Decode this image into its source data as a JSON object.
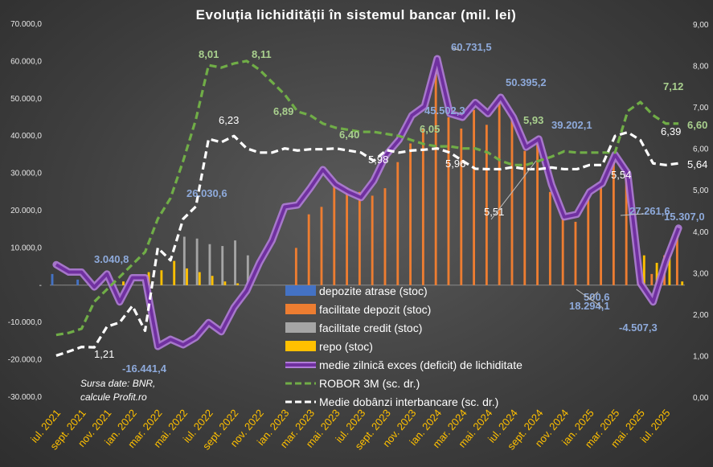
{
  "chart_data": {
    "type": "bar+line",
    "title": "Evoluția lichidității în sistemul bancar (mil. lei)",
    "source_line1": "Sursa date: BNR,",
    "source_line2": "calcule Profit.ro",
    "ylim_left": [
      -30000,
      70000
    ],
    "ylim_right": [
      0,
      9
    ],
    "left_ticks": [
      "70.000,0",
      "60.000,0",
      "50.000,0",
      "40.000,0",
      "30.000,0",
      "20.000,0",
      "10.000,0",
      "-",
      "-10.000,0",
      "-20.000,0",
      "-30.000,0"
    ],
    "right_ticks": [
      "9,00",
      "8,00",
      "7,00",
      "6,00",
      "5,00",
      "4,00",
      "3,00",
      "2,00",
      "1,00",
      "0,00"
    ],
    "x_labels": [
      "iul. 2021",
      "sept. 2021",
      "nov. 2021",
      "ian. 2022",
      "mar. 2022",
      "mai. 2022",
      "iul. 2022",
      "sept. 2022",
      "nov. 2022",
      "ian. 2023",
      "mar. 2023",
      "mai. 2023",
      "iul. 2023",
      "sept. 2023",
      "nov. 2023",
      "ian. 2024",
      "mar. 2024",
      "mai. 2024",
      "iul. 2024",
      "sept. 2024",
      "nov. 2024",
      "ian. 2025",
      "mar. 2025",
      "mai. 2025",
      "iul. 2025"
    ],
    "months": [
      "iul. 2021",
      "aug. 2021",
      "sept. 2021",
      "oct. 2021",
      "nov. 2021",
      "dec. 2021",
      "ian. 2022",
      "feb. 2022",
      "mar. 2022",
      "apr. 2022",
      "mai. 2022",
      "iun. 2022",
      "iul. 2022",
      "aug. 2022",
      "sept. 2022",
      "oct. 2022",
      "nov. 2022",
      "dec. 2022",
      "ian. 2023",
      "feb. 2023",
      "mar. 2023",
      "apr. 2023",
      "mai. 2023",
      "iun. 2023",
      "iul. 2023",
      "aug. 2023",
      "sept. 2023",
      "oct. 2023",
      "nov. 2023",
      "dec. 2023",
      "ian. 2024",
      "feb. 2024",
      "mar. 2024",
      "apr. 2024",
      "mai. 2024",
      "iun. 2024",
      "iul. 2024",
      "aug. 2024",
      "sept. 2024",
      "oct. 2024",
      "nov. 2024",
      "dec. 2024",
      "ian. 2025",
      "feb. 2025",
      "mar. 2025",
      "apr. 2025",
      "mai. 2025",
      "iun. 2025",
      "iul. 2025",
      "aug. 2025"
    ],
    "series": [
      {
        "name": "depozite atrase (stoc)",
        "kind": "bar",
        "axis": "left",
        "color": "#4472c4",
        "values": [
          3000,
          0,
          1500,
          0,
          0,
          0,
          500,
          0,
          0,
          0,
          0,
          0,
          0,
          0,
          0,
          0,
          0,
          0,
          0,
          0,
          0,
          0,
          0,
          0,
          0,
          0,
          0,
          0,
          0,
          0,
          0,
          0,
          0,
          0,
          0,
          0,
          0,
          0,
          0,
          0,
          0,
          0,
          0,
          0,
          0,
          0,
          0,
          0,
          0,
          0
        ]
      },
      {
        "name": "facilitate depozit (stoc)",
        "kind": "bar",
        "axis": "left",
        "color": "#ed7d31",
        "values": [
          0,
          0,
          0,
          0,
          0,
          0,
          0,
          0,
          0,
          0,
          0,
          0,
          0,
          0,
          0,
          0,
          0,
          0,
          0,
          10000,
          19000,
          21000,
          28000,
          26000,
          25000,
          24000,
          26000,
          33000,
          38000,
          42000,
          58000,
          45000,
          42000,
          47000,
          43000,
          49000,
          45000,
          36000,
          38000,
          25000,
          18000,
          17000,
          24000,
          27000,
          33000,
          30000,
          6000,
          3000,
          8000,
          14000
        ]
      },
      {
        "name": "facilitate credit (stoc)",
        "kind": "bar",
        "axis": "left",
        "color": "#a5a5a5",
        "values": [
          0,
          0,
          0,
          0,
          0,
          0,
          0,
          0,
          0,
          0,
          13000,
          12500,
          11000,
          10500,
          12000,
          8000,
          0,
          0,
          0,
          0,
          0,
          0,
          0,
          0,
          0,
          0,
          0,
          0,
          0,
          0,
          0,
          0,
          0,
          0,
          0,
          0,
          0,
          0,
          0,
          0,
          0,
          0,
          0,
          0,
          0,
          0,
          0,
          0,
          0,
          0
        ]
      },
      {
        "name": "repo (stoc)",
        "kind": "bar",
        "axis": "left",
        "color": "#ffc000",
        "values": [
          0,
          0,
          0,
          0,
          0,
          1000,
          0,
          3500,
          4000,
          6500,
          4500,
          3500,
          2500,
          1000,
          500,
          1500,
          0,
          0,
          0,
          0,
          0,
          0,
          0,
          0,
          0,
          0,
          0,
          0,
          0,
          0,
          0,
          0,
          0,
          0,
          0,
          0,
          0,
          0,
          0,
          0,
          0,
          0,
          0,
          0,
          0,
          0,
          8000,
          6000,
          9000,
          1000
        ]
      },
      {
        "name": "medie zilnică exces (deficit) de lichiditate",
        "kind": "line",
        "axis": "left",
        "color": "#7030a0",
        "values": [
          5500,
          3500,
          3500,
          -500,
          3040.8,
          -4500,
          2000,
          2000,
          -16441.4,
          -14500,
          -16000,
          -14000,
          -10000,
          -12500,
          -6000,
          -1500,
          6000,
          12000,
          21000,
          21500,
          26030.6,
          31000,
          27000,
          25000,
          23500,
          28000,
          35000,
          39000,
          45502.3,
          48000,
          60731.5,
          46000,
          45000,
          49000,
          46000,
          50395.2,
          45000,
          37000,
          39202.1,
          27000,
          18294.1,
          19000,
          25000,
          27261.6,
          35000,
          30000,
          500.6,
          -4507.3,
          6500,
          15307.0
        ]
      },
      {
        "name": "ROBOR 3M (sc. dr.)",
        "kind": "line",
        "axis": "right",
        "color": "#70ad47",
        "values": [
          1.5,
          1.55,
          1.65,
          2.3,
          2.6,
          2.9,
          3.2,
          3.5,
          4.3,
          4.8,
          5.7,
          6.7,
          8.01,
          7.95,
          8.05,
          8.11,
          7.9,
          7.6,
          7.3,
          6.89,
          6.8,
          6.6,
          6.5,
          6.45,
          6.4,
          6.4,
          6.35,
          6.3,
          6.2,
          6.1,
          6.05,
          6.05,
          6.0,
          6.0,
          5.9,
          5.7,
          5.6,
          5.6,
          5.7,
          5.8,
          5.93,
          5.9,
          5.9,
          5.9,
          5.9,
          6.9,
          7.12,
          6.8,
          6.6,
          6.6
        ]
      },
      {
        "name": "Medie dobânzi interbancare (sc. dr.)",
        "kind": "line",
        "axis": "right",
        "color": "#ffffff",
        "values": [
          1.0,
          1.1,
          1.21,
          1.2,
          1.7,
          1.8,
          2.2,
          1.6,
          3.6,
          3.3,
          4.3,
          4.6,
          6.23,
          6.15,
          6.3,
          6.0,
          5.9,
          5.9,
          6.0,
          5.95,
          5.98,
          5.98,
          6.0,
          5.95,
          5.9,
          5.7,
          5.96,
          5.9,
          5.95,
          5.97,
          6.0,
          5.9,
          5.7,
          5.51,
          5.5,
          5.5,
          5.55,
          5.5,
          5.5,
          5.54,
          5.5,
          5.5,
          5.6,
          5.6,
          6.3,
          6.39,
          6.2,
          5.64,
          5.6,
          5.64
        ]
      }
    ],
    "annotations": [
      {
        "text": "3.040,8",
        "series": "medie zilnică exces (deficit) de lichiditate",
        "color": "blue"
      },
      {
        "text": "-16.441,4",
        "series": "medie zilnică exces (deficit) de lichiditate",
        "color": "blue"
      },
      {
        "text": "26.030,6",
        "series": "medie zilnică exces (deficit) de lichiditate",
        "color": "blue"
      },
      {
        "text": "45.502,3",
        "series": "medie zilnică exces (deficit) de lichiditate",
        "color": "blue"
      },
      {
        "text": "60.731,5",
        "series": "medie zilnică exces (deficit) de lichiditate",
        "color": "blue"
      },
      {
        "text": "50.395,2",
        "series": "medie zilnică exces (deficit) de lichiditate",
        "color": "blue"
      },
      {
        "text": "39.202,1",
        "series": "medie zilnică exces (deficit) de lichiditate",
        "color": "blue"
      },
      {
        "text": "18.294,1",
        "series": "medie zilnică exces (deficit) de lichiditate",
        "color": "blue"
      },
      {
        "text": "27.261,6",
        "series": "medie zilnică exces (deficit) de lichiditate",
        "color": "blue"
      },
      {
        "text": "500,6",
        "series": "medie zilnică exces (deficit) de lichiditate",
        "color": "blue"
      },
      {
        "text": "-4.507,3",
        "series": "medie zilnică exces (deficit) de lichiditate",
        "color": "blue"
      },
      {
        "text": "15.307,0",
        "series": "medie zilnică exces (deficit) de lichiditate",
        "color": "blue"
      },
      {
        "text": "8,01",
        "series": "ROBOR 3M (sc. dr.)",
        "color": "green"
      },
      {
        "text": "8,11",
        "series": "ROBOR 3M (sc. dr.)",
        "color": "green"
      },
      {
        "text": "6,89",
        "series": "ROBOR 3M (sc. dr.)",
        "color": "green"
      },
      {
        "text": "6,40",
        "series": "ROBOR 3M (sc. dr.)",
        "color": "green"
      },
      {
        "text": "6,05",
        "series": "ROBOR 3M (sc. dr.)",
        "color": "green"
      },
      {
        "text": "5,93",
        "series": "ROBOR 3M (sc. dr.)",
        "color": "green"
      },
      {
        "text": "7,12",
        "series": "ROBOR 3M (sc. dr.)",
        "color": "green"
      },
      {
        "text": "6,60",
        "series": "ROBOR 3M (sc. dr.)",
        "color": "green"
      },
      {
        "text": "1,21",
        "series": "Medie dobânzi interbancare (sc. dr.)",
        "color": "white"
      },
      {
        "text": "6,23",
        "series": "Medie dobânzi interbancare (sc. dr.)",
        "color": "white"
      },
      {
        "text": "5,98",
        "series": "Medie dobânzi interbancare (sc. dr.)",
        "color": "white"
      },
      {
        "text": "5,96",
        "series": "Medie dobânzi interbancare (sc. dr.)",
        "color": "white"
      },
      {
        "text": "5,51",
        "series": "Medie dobânzi interbancare (sc. dr.)",
        "color": "white"
      },
      {
        "text": "5,54",
        "series": "Medie dobânzi interbancare (sc. dr.)",
        "color": "white"
      },
      {
        "text": "6,39",
        "series": "Medie dobânzi interbancare (sc. dr.)",
        "color": "white"
      },
      {
        "text": "5,64",
        "series": "Medie dobânzi interbancare (sc. dr.)",
        "color": "white"
      }
    ],
    "legend": {
      "placement": "center-bottom inside plot"
    },
    "grid": false
  }
}
